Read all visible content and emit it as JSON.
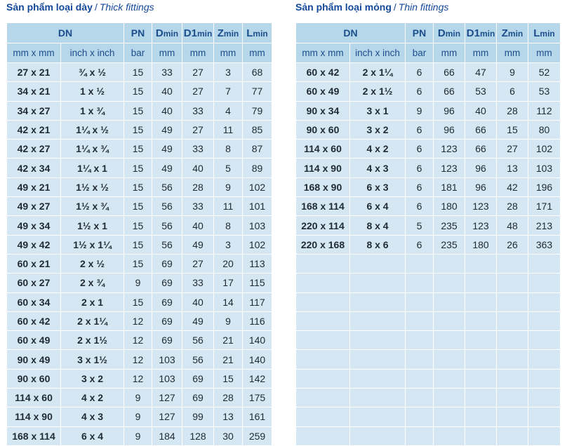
{
  "thick": {
    "title_vn": "Sản phẩm loại dày",
    "separator": "/",
    "title_en": "Thick fittings",
    "rows": [
      [
        "27 x 21",
        "¾ x ½",
        "15",
        "33",
        "27",
        "3",
        "68"
      ],
      [
        "34 x 21",
        "1 x ½",
        "15",
        "40",
        "27",
        "7",
        "77"
      ],
      [
        "34 x 27",
        "1 x ¾",
        "15",
        "40",
        "33",
        "4",
        "79"
      ],
      [
        "42 x 21",
        "1¼ x ½",
        "15",
        "49",
        "27",
        "11",
        "85"
      ],
      [
        "42 x 27",
        "1¼ x ¾",
        "15",
        "49",
        "33",
        "8",
        "87"
      ],
      [
        "42 x 34",
        "1¼ x 1",
        "15",
        "49",
        "40",
        "5",
        "89"
      ],
      [
        "49 x 21",
        "1½ x ½",
        "15",
        "56",
        "28",
        "9",
        "102"
      ],
      [
        "49 x 27",
        "1½ x ¾",
        "15",
        "56",
        "33",
        "11",
        "101"
      ],
      [
        "49 x 34",
        "1½ x 1",
        "15",
        "56",
        "40",
        "8",
        "103"
      ],
      [
        "49 x 42",
        "1½ x 1¼",
        "15",
        "56",
        "49",
        "3",
        "102"
      ],
      [
        "60 x 21",
        "2 x ½",
        "15",
        "69",
        "27",
        "20",
        "113"
      ],
      [
        "60 x 27",
        "2 x ¾",
        "9",
        "69",
        "33",
        "17",
        "115"
      ],
      [
        "60 x 34",
        "2 x 1",
        "15",
        "69",
        "40",
        "14",
        "117"
      ],
      [
        "60 x 42",
        "2 x 1¼",
        "12",
        "69",
        "49",
        "9",
        "116"
      ],
      [
        "60 x 49",
        "2 x 1½",
        "12",
        "69",
        "56",
        "21",
        "140"
      ],
      [
        "90 x 49",
        "3 x 1½",
        "12",
        "103",
        "56",
        "21",
        "140"
      ],
      [
        "90 x 60",
        "3 x 2",
        "12",
        "103",
        "69",
        "15",
        "142"
      ],
      [
        "114 x 60",
        "4 x 2",
        "9",
        "127",
        "69",
        "28",
        "175"
      ],
      [
        "114 x 90",
        "4 x 3",
        "9",
        "127",
        "99",
        "13",
        "161"
      ],
      [
        "168 x 114",
        "6 x 4",
        "9",
        "184",
        "128",
        "30",
        "259"
      ]
    ]
  },
  "thin": {
    "title_vn": "Sản phẩm loại mỏng",
    "separator": "/",
    "title_en": "Thin fittings",
    "rows": [
      [
        "60 x 42",
        "2 x 1¼",
        "6",
        "66",
        "47",
        "9",
        "52"
      ],
      [
        "60 x 49",
        "2 x 1½",
        "6",
        "66",
        "53",
        "6",
        "53"
      ],
      [
        "90 x 34",
        "3 x 1",
        "9",
        "96",
        "40",
        "28",
        "112"
      ],
      [
        "90 x 60",
        "3 x 2",
        "6",
        "96",
        "66",
        "15",
        "80"
      ],
      [
        "114 x 60",
        "4 x 2",
        "6",
        "123",
        "66",
        "27",
        "102"
      ],
      [
        "114 x 90",
        "4 x 3",
        "6",
        "123",
        "96",
        "13",
        "103"
      ],
      [
        "168 x 90",
        "6 x 3",
        "6",
        "181",
        "96",
        "42",
        "196"
      ],
      [
        "168 x 114",
        "6 x 4",
        "6",
        "180",
        "123",
        "28",
        "171"
      ],
      [
        "220 x 114",
        "8 x 4",
        "5",
        "235",
        "123",
        "48",
        "213"
      ],
      [
        "220 x 168",
        "8 x 6",
        "6",
        "235",
        "180",
        "26",
        "363"
      ]
    ],
    "empty_rows": 10
  },
  "headers": {
    "dn": "DN",
    "pn": "PN",
    "dmin": {
      "big": "D",
      "small": "min"
    },
    "d1min": {
      "big": "D1",
      "small": "min"
    },
    "zmin": {
      "big": "Z",
      "small": "min"
    },
    "lmin": {
      "big": "L",
      "small": "min"
    },
    "units": [
      "mm x mm",
      "inch x inch",
      "bar",
      "mm",
      "mm",
      "mm",
      "mm"
    ]
  },
  "colors": {
    "title": "#14489a",
    "header_bg": "#b6d6ea",
    "header_text": "#1c4e8c",
    "cell_bg": "#d4e7f3",
    "cell_text": "#1f2a33"
  }
}
